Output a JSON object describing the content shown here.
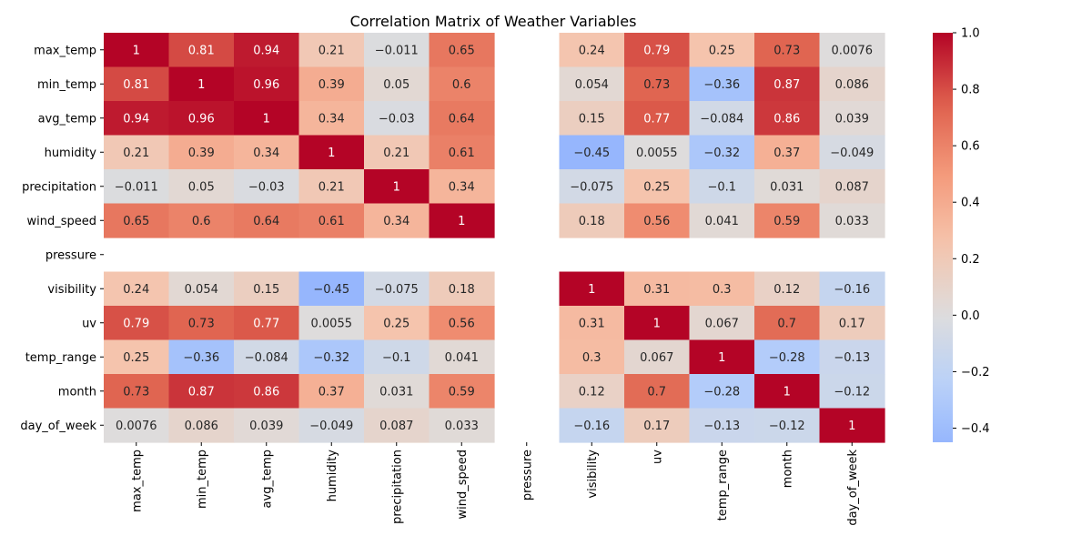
{
  "chart_data": {
    "type": "heatmap",
    "title": "Correlation Matrix of Weather Variables",
    "xlabel": "",
    "ylabel": "",
    "rows": [
      "max_temp",
      "min_temp",
      "avg_temp",
      "humidity",
      "precipitation",
      "wind_speed",
      "pressure",
      "visibility",
      "uv",
      "temp_range",
      "month",
      "day_of_week"
    ],
    "columns": [
      "max_temp",
      "min_temp",
      "avg_temp",
      "humidity",
      "precipitation",
      "wind_speed",
      "pressure",
      "visibility",
      "uv",
      "temp_range",
      "month",
      "day_of_week"
    ],
    "values": [
      [
        1,
        0.81,
        0.94,
        0.21,
        -0.011,
        0.65,
        null,
        0.24,
        0.79,
        0.25,
        0.73,
        0.0076
      ],
      [
        0.81,
        1,
        0.96,
        0.39,
        0.05,
        0.6,
        null,
        0.054,
        0.73,
        -0.36,
        0.87,
        0.086
      ],
      [
        0.94,
        0.96,
        1,
        0.34,
        -0.03,
        0.64,
        null,
        0.15,
        0.77,
        -0.084,
        0.86,
        0.039
      ],
      [
        0.21,
        0.39,
        0.34,
        1,
        0.21,
        0.61,
        null,
        -0.45,
        0.0055,
        -0.32,
        0.37,
        -0.049
      ],
      [
        -0.011,
        0.05,
        -0.03,
        0.21,
        1,
        0.34,
        null,
        -0.075,
        0.25,
        -0.1,
        0.031,
        0.087
      ],
      [
        0.65,
        0.6,
        0.64,
        0.61,
        0.34,
        1,
        null,
        0.18,
        0.56,
        0.041,
        0.59,
        0.033
      ],
      [
        null,
        null,
        null,
        null,
        null,
        null,
        null,
        null,
        null,
        null,
        null,
        null
      ],
      [
        0.24,
        0.054,
        0.15,
        -0.45,
        -0.075,
        0.18,
        null,
        1,
        0.31,
        0.3,
        0.12,
        -0.16
      ],
      [
        0.79,
        0.73,
        0.77,
        0.0055,
        0.25,
        0.56,
        null,
        0.31,
        1,
        0.067,
        0.7,
        0.17
      ],
      [
        0.25,
        -0.36,
        -0.084,
        -0.32,
        -0.1,
        0.041,
        null,
        0.3,
        0.067,
        1,
        -0.28,
        -0.13
      ],
      [
        0.73,
        0.87,
        0.86,
        0.37,
        0.031,
        0.59,
        null,
        0.12,
        0.7,
        -0.28,
        1,
        -0.12
      ],
      [
        0.0076,
        0.086,
        0.039,
        -0.049,
        0.087,
        0.033,
        null,
        -0.16,
        0.17,
        -0.13,
        -0.12,
        1
      ]
    ],
    "colorscale": "coolwarm",
    "vmin": -0.45,
    "vmax": 1.0,
    "colorbar_ticks": [
      "1.0",
      "0.8",
      "0.6",
      "0.4",
      "0.2",
      "0.0",
      "−0.2",
      "−0.4"
    ],
    "colorbar_tick_values": [
      1.0,
      0.8,
      0.6,
      0.4,
      0.2,
      0.0,
      -0.2,
      -0.4
    ],
    "annotated": true,
    "grid": false,
    "legend": "colorbar-right"
  }
}
